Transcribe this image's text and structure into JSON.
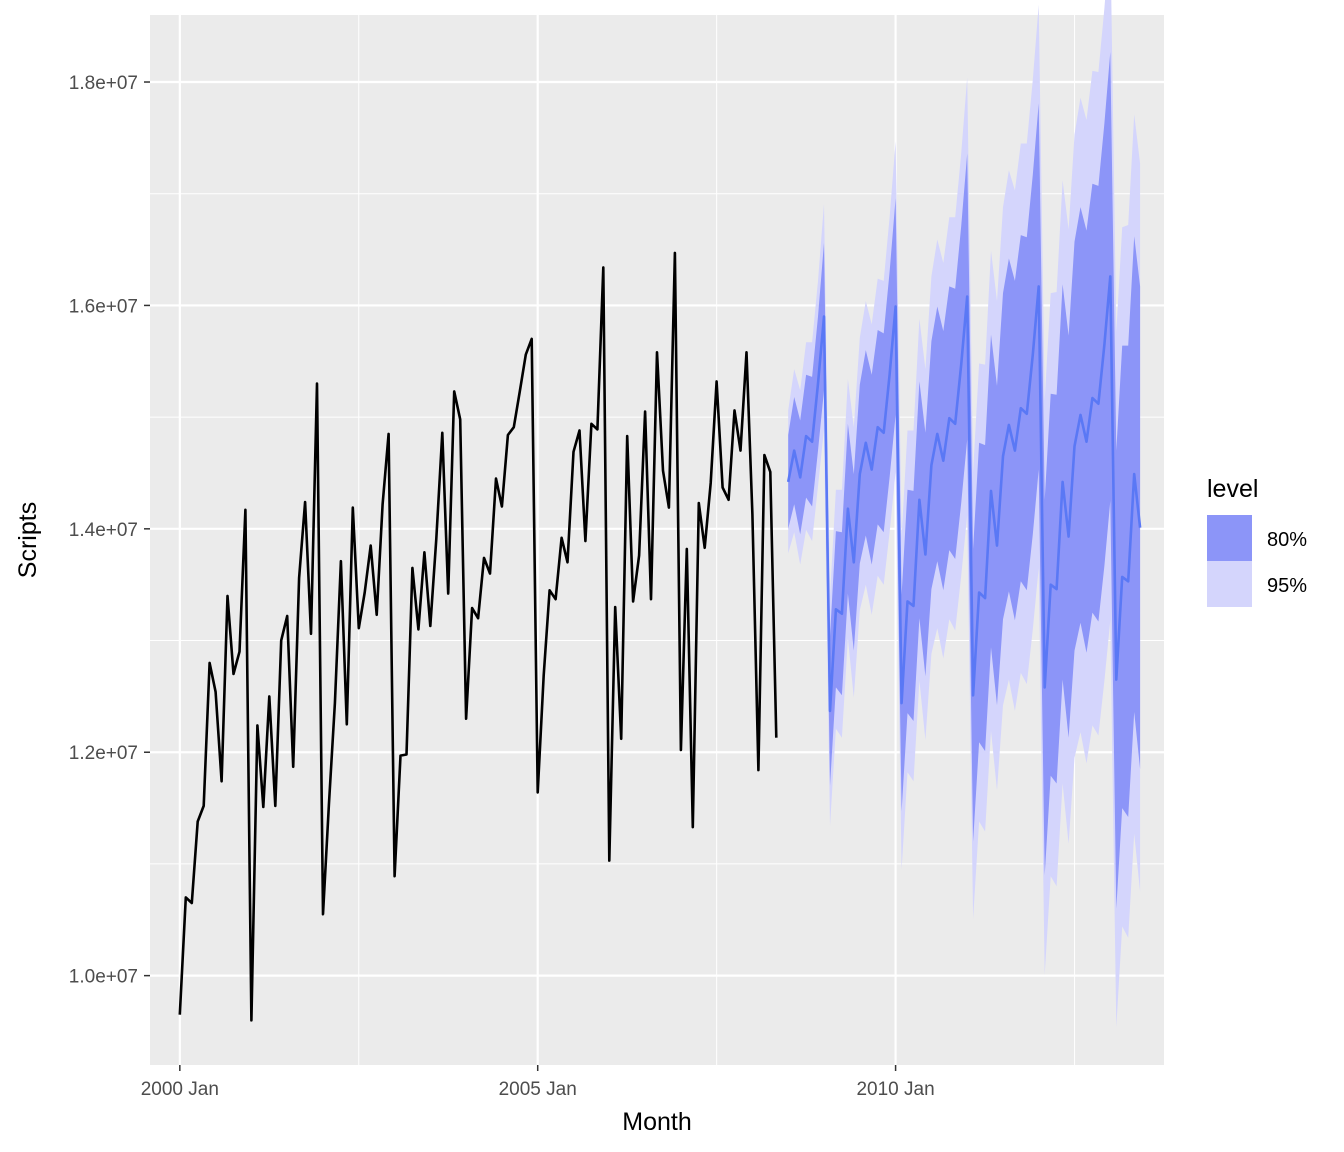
{
  "chart_data": {
    "type": "line",
    "title": "",
    "xlabel": "Month",
    "ylabel": "Scripts",
    "grid": true,
    "legend_position": "right",
    "legend": {
      "title": "level",
      "entries": [
        {
          "label": "80%",
          "color": "#8c95f8"
        },
        {
          "label": "95%",
          "color": "#d4d5fc"
        }
      ]
    },
    "x_ticks": [
      {
        "label": "2000 Jan",
        "value": "2000-01"
      },
      {
        "label": "2005 Jan",
        "value": "2005-01"
      },
      {
        "label": "2010 Jan",
        "value": "2010-01"
      }
    ],
    "y_ticks": [
      {
        "label": "1.0e+07",
        "value": 10000000
      },
      {
        "label": "1.2e+07",
        "value": 12000000
      },
      {
        "label": "1.4e+07",
        "value": 14000000
      },
      {
        "label": "1.6e+07",
        "value": 16000000
      },
      {
        "label": "1.8e+07",
        "value": 18000000
      }
    ],
    "xlim": [
      "1999-08",
      "2013-10"
    ],
    "ylim": [
      9200000,
      18600000
    ],
    "colors": {
      "panel": "#ebebeb",
      "grid": "#ffffff",
      "history": "#000000",
      "forecast": "#5a78f5",
      "band80": "#8c95f8",
      "band95": "#d4d5fc"
    },
    "series": [
      {
        "start": "2000-01",
        "values": [
          9650000,
          10700000,
          10650000,
          11380000,
          11520000,
          12800000,
          12540000,
          11740000,
          13400000,
          12700000,
          12900000,
          14170000,
          9600000,
          12240000,
          11510000,
          12500000,
          11520000,
          13000000,
          13220000,
          11870000,
          13560000,
          14240000,
          13060000,
          15300000,
          10550000,
          11530000,
          12440000,
          13710000,
          12250000,
          14190000,
          13110000,
          13430000,
          13850000,
          13230000,
          14220000,
          14850000,
          10890000,
          11970000,
          11980000,
          13650000,
          13100000,
          13790000,
          13130000,
          13910000,
          14860000,
          13420000,
          15230000,
          14980000,
          12300000,
          13290000,
          13200000,
          13740000,
          13600000,
          14450000,
          14200000,
          14840000,
          14910000,
          15230000,
          15560000,
          15700000,
          11640000,
          12690000,
          13450000,
          13370000,
          13920000,
          13700000,
          14690000,
          14880000,
          13890000,
          14940000,
          14890000,
          16340000,
          11030000,
          13300000,
          12120000,
          14830000,
          13350000,
          13760000,
          15050000,
          13370000,
          15580000,
          14520000,
          14190000,
          16470000,
          12020000,
          13820000,
          11330000,
          14230000,
          13830000,
          14410000,
          15320000,
          14370000,
          14260000,
          15060000,
          14700000,
          15580000,
          14130000,
          11840000,
          14660000,
          14510000,
          12130000
        ]
      },
      {
        "name": "forecast",
        "start": "2008-07",
        "mean": [
          14420000,
          14700000,
          14460000,
          14830000,
          14780000,
          15300000,
          15900000,
          12370000,
          13280000,
          13240000,
          14180000,
          13700000,
          14490000,
          14770000,
          14530000,
          14910000,
          14860000,
          15380000,
          15990000,
          12440000,
          13350000,
          13310000,
          14260000,
          13770000,
          14570000,
          14850000,
          14610000,
          14990000,
          14940000,
          15470000,
          16080000,
          12510000,
          13430000,
          13380000,
          14340000,
          13850000,
          14650000,
          14930000,
          14700000,
          15080000,
          15030000,
          15560000,
          16170000,
          12580000,
          13500000,
          13460000,
          14420000,
          13930000,
          14740000,
          15020000,
          14780000,
          15170000,
          15120000,
          15650000,
          16260000,
          12650000,
          13570000,
          13530000,
          14490000,
          14010000
        ],
        "lo80": [
          14000000,
          14220000,
          13950000,
          14280000,
          14200000,
          14700000,
          15240000,
          11700000,
          12580000,
          12510000,
          13420000,
          12910000,
          13690000,
          13940000,
          13680000,
          14040000,
          13970000,
          14460000,
          15020000,
          11470000,
          12350000,
          12280000,
          13200000,
          12680000,
          13460000,
          13710000,
          13450000,
          13810000,
          13730000,
          14230000,
          14800000,
          11200000,
          12090000,
          12010000,
          12940000,
          12420000,
          13190000,
          13440000,
          13180000,
          13530000,
          13450000,
          13950000,
          14530000,
          10900000,
          11790000,
          11720000,
          12650000,
          12130000,
          12910000,
          13160000,
          12890000,
          13250000,
          13170000,
          13670000,
          14250000,
          10600000,
          11500000,
          11420000,
          12360000,
          11850000
        ],
        "hi80": [
          14840000,
          15180000,
          14970000,
          15380000,
          15360000,
          15900000,
          16560000,
          13040000,
          13980000,
          13970000,
          14940000,
          14490000,
          15290000,
          15600000,
          15380000,
          15780000,
          15750000,
          16300000,
          16960000,
          13410000,
          14350000,
          14340000,
          15320000,
          14860000,
          15680000,
          15990000,
          15770000,
          16170000,
          16150000,
          16710000,
          17360000,
          13820000,
          14770000,
          14750000,
          15740000,
          15280000,
          16110000,
          16420000,
          16220000,
          16630000,
          16610000,
          17170000,
          17810000,
          14260000,
          15210000,
          15200000,
          16190000,
          15730000,
          16570000,
          16880000,
          16670000,
          17090000,
          17070000,
          17630000,
          18270000,
          14700000,
          15640000,
          15640000,
          16620000,
          16170000
        ],
        "lo95": [
          13780000,
          13970000,
          13680000,
          13990000,
          13890000,
          14380000,
          14890000,
          11340000,
          12210000,
          12130000,
          13020000,
          12490000,
          13270000,
          13500000,
          13230000,
          13580000,
          13500000,
          13970000,
          14510000,
          10950000,
          11820000,
          11740000,
          12640000,
          12110000,
          12880000,
          13110000,
          12840000,
          13190000,
          13090000,
          13580000,
          14120000,
          10510000,
          11380000,
          11290000,
          12190000,
          11660000,
          12420000,
          12650000,
          12370000,
          12710000,
          12610000,
          13100000,
          13650000,
          10010000,
          10890000,
          10800000,
          11720000,
          11180000,
          11950000,
          12180000,
          11900000,
          12240000,
          12150000,
          12640000,
          13180000,
          9540000,
          10440000,
          10340000,
          11270000,
          10750000
        ],
        "hi95": [
          15060000,
          15430000,
          15240000,
          15670000,
          15670000,
          16220000,
          16910000,
          13400000,
          14350000,
          14350000,
          15340000,
          14910000,
          15710000,
          16040000,
          15830000,
          16240000,
          16220000,
          16790000,
          17470000,
          13930000,
          14880000,
          14880000,
          15880000,
          15430000,
          16260000,
          16590000,
          16380000,
          16790000,
          16790000,
          17360000,
          18040000,
          14510000,
          15480000,
          15470000,
          16490000,
          16040000,
          16880000,
          17210000,
          17030000,
          17450000,
          17450000,
          18020000,
          18690000,
          15150000,
          16110000,
          16120000,
          17120000,
          16680000,
          17530000,
          17860000,
          17660000,
          18100000,
          18090000,
          18660000,
          19340000,
          15760000,
          16700000,
          16720000,
          17710000,
          17270000
        ]
      }
    ]
  }
}
